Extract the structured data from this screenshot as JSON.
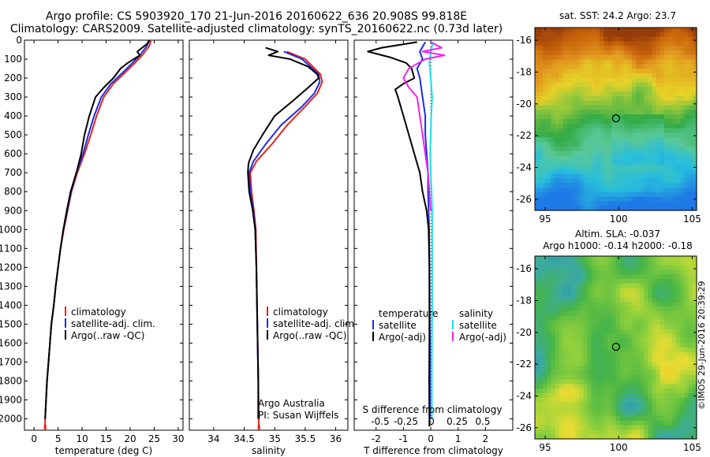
{
  "header": {
    "title": "Argo profile: CS 5903920_170 21-Jun-2016 20160622_636 20.908S 99.818E",
    "subtitle": "Climatology: CARS2009. Satellite-adjusted climatology: synTS_20160622.nc (0.73d later)"
  },
  "side_label": "©IMOS 29-Jun-2016 20:39:29",
  "colors": {
    "climatology": "#e8231d",
    "satellite": "#1a2ee0",
    "argo": "#000000",
    "sat_salinity": "#18e0e8",
    "argo_salinity": "#ee22ee"
  },
  "chart_data": [
    {
      "type": "line",
      "xlabel": "temperature (deg C)",
      "ylabel": "",
      "xlim": [
        -2,
        31
      ],
      "ylim": [
        2060,
        0
      ],
      "xticks": [
        0,
        5,
        10,
        15,
        20,
        25,
        30
      ],
      "yticks": [
        0,
        100,
        200,
        300,
        400,
        500,
        600,
        700,
        800,
        900,
        1000,
        1100,
        1200,
        1300,
        1400,
        1500,
        1600,
        1700,
        1800,
        1900,
        2000
      ],
      "legend": [
        "climatology",
        "satellite-adj. clim.",
        "Argo(..raw -QC)"
      ],
      "series": [
        {
          "name": "climatology",
          "color": "#e8231d",
          "points": [
            [
              24.3,
              0
            ],
            [
              24.0,
              30
            ],
            [
              22.5,
              80
            ],
            [
              21.0,
              120
            ],
            [
              19.0,
              170
            ],
            [
              16.5,
              230
            ],
            [
              14.5,
              300
            ],
            [
              13.0,
              400
            ],
            [
              11.8,
              500
            ],
            [
              10.5,
              600
            ],
            [
              9.0,
              700
            ],
            [
              7.8,
              800
            ],
            [
              7.0,
              900
            ],
            [
              6.2,
              1000
            ],
            [
              5.5,
              1100
            ],
            [
              5.0,
              1200
            ],
            [
              4.5,
              1300
            ],
            [
              4.1,
              1400
            ],
            [
              3.6,
              1500
            ],
            [
              3.3,
              1600
            ],
            [
              3.0,
              1700
            ],
            [
              2.7,
              1800
            ],
            [
              2.5,
              1900
            ],
            [
              2.3,
              2000
            ],
            [
              2.3,
              2050
            ]
          ]
        },
        {
          "name": "satellite-adj. clim.",
          "color": "#1a2ee0",
          "points": [
            [
              24.0,
              0
            ],
            [
              23.5,
              30
            ],
            [
              22.0,
              80
            ],
            [
              20.5,
              120
            ],
            [
              18.5,
              170
            ],
            [
              16.0,
              230
            ],
            [
              14.0,
              300
            ],
            [
              12.5,
              400
            ],
            [
              11.3,
              500
            ],
            [
              10.2,
              600
            ],
            [
              8.8,
              700
            ],
            [
              7.7,
              800
            ],
            [
              6.9,
              900
            ],
            [
              6.1,
              1000
            ],
            [
              5.5,
              1100
            ],
            [
              5.0,
              1200
            ],
            [
              4.5,
              1300
            ],
            [
              4.1,
              1400
            ],
            [
              3.6,
              1500
            ],
            [
              3.3,
              1600
            ],
            [
              3.0,
              1700
            ],
            [
              2.7,
              1800
            ],
            [
              2.5,
              1900
            ],
            [
              2.3,
              2000
            ]
          ]
        },
        {
          "name": "Argo(..raw -QC)",
          "color": "#000000",
          "points": [
            [
              24.0,
              0
            ],
            [
              23.5,
              20
            ],
            [
              21.5,
              60
            ],
            [
              22.0,
              80
            ],
            [
              19.5,
              120
            ],
            [
              18.0,
              150
            ],
            [
              16.5,
              200
            ],
            [
              14.5,
              250
            ],
            [
              12.8,
              300
            ],
            [
              11.5,
              400
            ],
            [
              10.5,
              500
            ],
            [
              9.8,
              600
            ],
            [
              8.8,
              700
            ],
            [
              7.6,
              800
            ],
            [
              6.8,
              900
            ],
            [
              6.1,
              1000
            ],
            [
              5.5,
              1100
            ],
            [
              5.0,
              1200
            ],
            [
              4.5,
              1300
            ],
            [
              4.1,
              1400
            ],
            [
              3.6,
              1500
            ],
            [
              3.3,
              1600
            ],
            [
              3.0,
              1700
            ],
            [
              2.7,
              1800
            ],
            [
              2.5,
              1900
            ],
            [
              2.3,
              2000
            ]
          ]
        }
      ]
    },
    {
      "type": "line",
      "xlabel": "salinity",
      "xlim": [
        33.6,
        36.2
      ],
      "ylim": [
        2060,
        0
      ],
      "xticks": [
        34,
        34.5,
        35,
        35.5,
        36
      ],
      "legend": [
        "climatology",
        "satellite-adj. clim.",
        "Argo(..raw -QC)"
      ],
      "annotations": [
        "Argo Australia",
        "PI: Susan Wijffels"
      ],
      "series": [
        {
          "name": "climatology",
          "color": "#e8231d",
          "points": [
            [
              35.2,
              60
            ],
            [
              35.5,
              100
            ],
            [
              35.75,
              180
            ],
            [
              35.78,
              220
            ],
            [
              35.7,
              280
            ],
            [
              35.5,
              350
            ],
            [
              35.2,
              450
            ],
            [
              34.95,
              550
            ],
            [
              34.7,
              640
            ],
            [
              34.6,
              700
            ],
            [
              34.62,
              800
            ],
            [
              34.66,
              900
            ],
            [
              34.69,
              1000
            ],
            [
              34.7,
              1200
            ],
            [
              34.71,
              1400
            ],
            [
              34.72,
              1600
            ],
            [
              34.73,
              1800
            ],
            [
              34.74,
              2000
            ],
            [
              34.74,
              2050
            ]
          ]
        },
        {
          "name": "satellite-adj. clim.",
          "color": "#1a2ee0",
          "points": [
            [
              35.15,
              60
            ],
            [
              35.45,
              100
            ],
            [
              35.72,
              180
            ],
            [
              35.74,
              220
            ],
            [
              35.65,
              280
            ],
            [
              35.45,
              350
            ],
            [
              35.1,
              450
            ],
            [
              34.85,
              550
            ],
            [
              34.65,
              640
            ],
            [
              34.58,
              700
            ],
            [
              34.6,
              800
            ],
            [
              34.65,
              900
            ],
            [
              34.68,
              1000
            ],
            [
              34.7,
              1200
            ],
            [
              34.71,
              1400
            ],
            [
              34.72,
              1600
            ],
            [
              34.73,
              1800
            ],
            [
              34.73,
              2000
            ]
          ]
        },
        {
          "name": "Argo(..raw -QC)",
          "color": "#000000",
          "points": [
            [
              34.85,
              40
            ],
            [
              35.05,
              60
            ],
            [
              34.9,
              80
            ],
            [
              35.25,
              100
            ],
            [
              35.55,
              140
            ],
            [
              35.7,
              180
            ],
            [
              35.72,
              200
            ],
            [
              35.55,
              250
            ],
            [
              35.3,
              320
            ],
            [
              35.0,
              400
            ],
            [
              34.8,
              500
            ],
            [
              34.65,
              580
            ],
            [
              34.57,
              650
            ],
            [
              34.56,
              700
            ],
            [
              34.58,
              800
            ],
            [
              34.64,
              900
            ],
            [
              34.68,
              1000
            ],
            [
              34.7,
              1200
            ],
            [
              34.71,
              1400
            ],
            [
              34.72,
              1600
            ],
            [
              34.73,
              1800
            ],
            [
              34.73,
              2000
            ]
          ]
        }
      ]
    },
    {
      "type": "line",
      "xlabel": "T difference from climatology",
      "xlabel2": "S difference from climatology",
      "xlim": [
        -2.8,
        3.0
      ],
      "ylim": [
        2060,
        0
      ],
      "xticks": [
        -2,
        -1,
        0,
        1,
        2
      ],
      "xticks_salinity": [
        -0.5,
        -0.25,
        0,
        0.25,
        0.5
      ],
      "legend_left": [
        "temperature",
        "satellite",
        "Argo(-adj)"
      ],
      "legend_right": [
        "salinity",
        "satellite",
        "Argo(-adj)"
      ],
      "series": [
        {
          "name": "temperature satellite",
          "color": "#1a2ee0",
          "points": [
            [
              -0.2,
              10
            ],
            [
              -0.4,
              60
            ],
            [
              -0.3,
              100
            ],
            [
              -0.5,
              150
            ],
            [
              -0.4,
              200
            ],
            [
              -0.3,
              300
            ],
            [
              -0.2,
              400
            ],
            [
              -0.2,
              500
            ],
            [
              -0.15,
              600
            ],
            [
              -0.1,
              700
            ],
            [
              -0.1,
              800
            ],
            [
              -0.08,
              900
            ],
            [
              -0.06,
              1000
            ],
            [
              -0.05,
              1200
            ],
            [
              -0.04,
              1400
            ],
            [
              -0.03,
              1600
            ],
            [
              -0.03,
              1800
            ],
            [
              -0.03,
              2000
            ]
          ]
        },
        {
          "name": "temperature Argo(-adj)",
          "color": "#000000",
          "points": [
            [
              -0.5,
              10
            ],
            [
              -1.8,
              40
            ],
            [
              -2.3,
              60
            ],
            [
              -1.5,
              90
            ],
            [
              -0.9,
              120
            ],
            [
              -0.7,
              150
            ],
            [
              -0.6,
              200
            ],
            [
              -1.0,
              230
            ],
            [
              -1.3,
              260
            ],
            [
              -1.2,
              300
            ],
            [
              -1.0,
              400
            ],
            [
              -0.8,
              500
            ],
            [
              -0.6,
              600
            ],
            [
              -0.4,
              700
            ],
            [
              -0.3,
              800
            ],
            [
              -0.15,
              900
            ],
            [
              -0.08,
              1000
            ],
            [
              -0.05,
              1200
            ],
            [
              -0.05,
              1400
            ],
            [
              -0.05,
              1600
            ],
            [
              -0.06,
              1800
            ],
            [
              -0.05,
              2000
            ],
            [
              -0.05,
              2040
            ]
          ]
        },
        {
          "name": "salinity satellite",
          "color": "#18e0e8",
          "points": [
            [
              0.08,
              10
            ],
            [
              0.0,
              60
            ],
            [
              -0.05,
              120
            ],
            [
              0.0,
              200
            ],
            [
              0.05,
              300
            ],
            [
              0.02,
              400
            ],
            [
              0.0,
              500
            ],
            [
              -0.02,
              600
            ],
            [
              0.0,
              700
            ],
            [
              0.03,
              800
            ],
            [
              0.05,
              900
            ],
            [
              0.05,
              1100
            ],
            [
              0.05,
              1400
            ],
            [
              0.04,
              1700
            ],
            [
              0.04,
              2000
            ]
          ]
        },
        {
          "name": "salinity Argo(-adj)",
          "color": "#ee22ee",
          "points": [
            [
              0.0,
              10
            ],
            [
              0.4,
              40
            ],
            [
              -0.3,
              60
            ],
            [
              0.5,
              80
            ],
            [
              -0.2,
              100
            ],
            [
              -0.8,
              150
            ],
            [
              -1.0,
              200
            ],
            [
              -0.8,
              250
            ],
            [
              -0.5,
              300
            ],
            [
              -0.4,
              400
            ],
            [
              -0.3,
              500
            ],
            [
              -0.2,
              600
            ],
            [
              -0.1,
              700
            ],
            [
              -0.05,
              800
            ],
            [
              0.0,
              900
            ]
          ]
        }
      ]
    },
    {
      "type": "heatmap",
      "title": "sat. SST: 24.2  Argo: 23.7",
      "xlim": [
        94.3,
        105.3
      ],
      "ylim": [
        -26.7,
        -15.2
      ],
      "xticks": [
        95,
        100,
        105
      ],
      "yticks": [
        -16,
        -18,
        -20,
        -22,
        -24,
        -26
      ],
      "marker": {
        "lon": 99.818,
        "lat": -20.908
      }
    },
    {
      "type": "heatmap",
      "title": "Altim. SLA: -0.037",
      "subtitle": "Argo h1000: -0.14 h2000: -0.18",
      "xlim": [
        94.3,
        105.3
      ],
      "ylim": [
        -26.7,
        -15.2
      ],
      "xticks": [
        95,
        100,
        105
      ],
      "yticks": [
        -16,
        -18,
        -20,
        -22,
        -24,
        -26
      ],
      "marker": {
        "lon": 99.818,
        "lat": -20.908
      }
    }
  ]
}
